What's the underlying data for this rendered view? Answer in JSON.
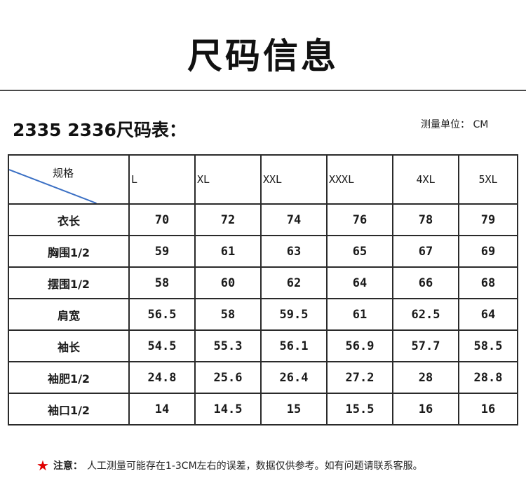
{
  "title": "尺码信息",
  "table_heading": "2335 2336尺码表：",
  "unit": "测量单位：  CM",
  "table": {
    "corner_label": "规格",
    "sizes": [
      "L",
      "XL",
      "XXL",
      "XXXL",
      "4XL",
      "5XL"
    ],
    "rows": [
      {
        "label": "衣长",
        "values": [
          "70",
          "72",
          "74",
          "76",
          "78",
          "79"
        ]
      },
      {
        "label": "胸围1/2",
        "values": [
          "59",
          "61",
          "63",
          "65",
          "67",
          "69"
        ]
      },
      {
        "label": "摆围1/2",
        "values": [
          "58",
          "60",
          "62",
          "64",
          "66",
          "68"
        ]
      },
      {
        "label": "肩宽",
        "values": [
          "56.5",
          "58",
          "59.5",
          "61",
          "62.5",
          "64"
        ]
      },
      {
        "label": "袖长",
        "values": [
          "54.5",
          "55.3",
          "56.1",
          "56.9",
          "57.7",
          "58.5"
        ]
      },
      {
        "label": "袖肥1/2",
        "values": [
          "24.8",
          "25.6",
          "26.4",
          "27.2",
          "28",
          "28.8"
        ]
      },
      {
        "label": "袖口1/2",
        "values": [
          "14",
          "14.5",
          "15",
          "15.5",
          "16",
          "16"
        ]
      }
    ]
  },
  "note": {
    "icon": "star-icon",
    "label": "注意：",
    "text": "人工测量可能存在1-3CM左右的误差，数据仅供参考。如有问题请联系客服。"
  },
  "colors": {
    "star": "#e00000",
    "diagonal": "#3a6fc4",
    "border": "#2a2a2a"
  }
}
